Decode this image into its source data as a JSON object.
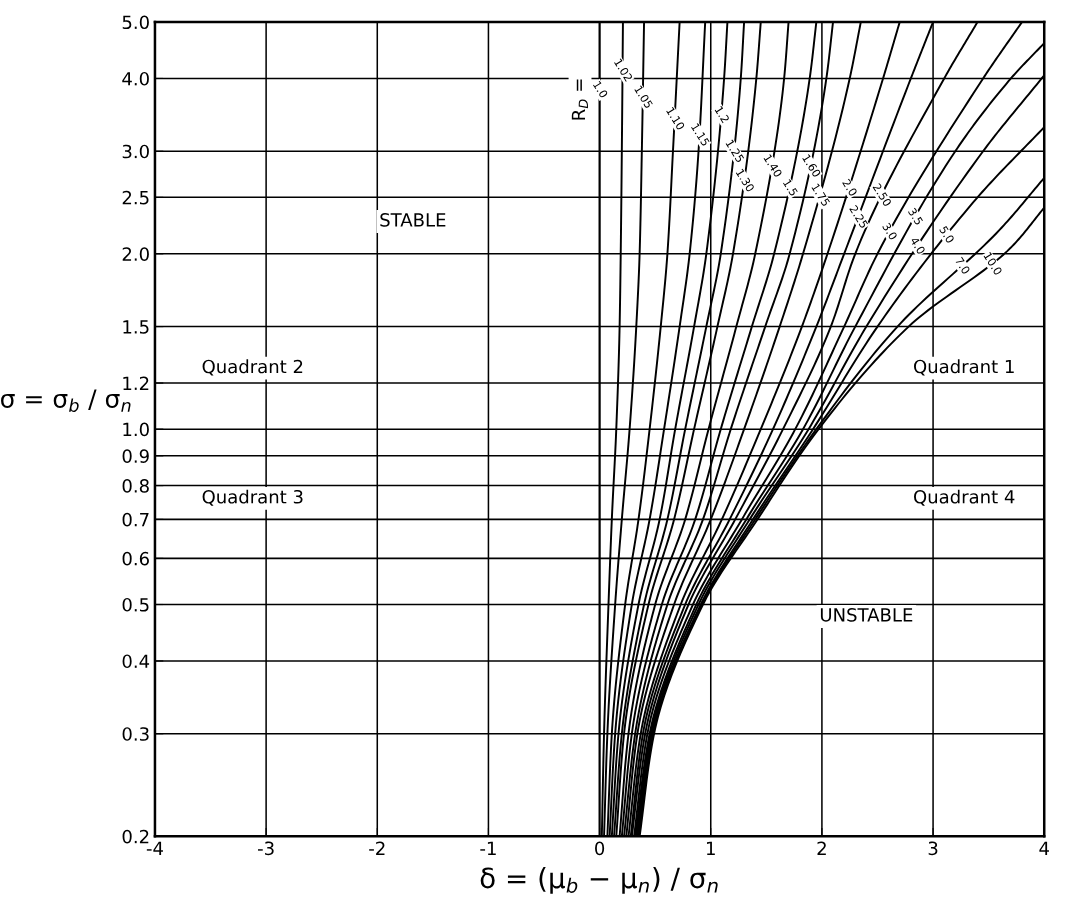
{
  "chart_data": {
    "type": "line",
    "xlabel": "δ = (μ$_{b}$ − μ$_{n}$) / σ$_{n}$",
    "ylabel": "σ = σ$_{b}$ / σ$_{n}$",
    "log": "y",
    "grid": true,
    "line_style": "solid",
    "xlim": [
      -4,
      4
    ],
    "xticks": [
      -4,
      -3,
      -2,
      -1,
      0,
      1,
      2,
      3,
      4
    ],
    "ylim": [
      0.2,
      5
    ],
    "yticks": [
      {
        "value": 0.2,
        "label": "0.2"
      },
      {
        "value": 0.3,
        "label": "0.3"
      },
      {
        "value": 0.4,
        "label": "0.4"
      },
      {
        "value": 0.5,
        "label": "0.5"
      },
      {
        "value": 0.6,
        "label": "0.6"
      },
      {
        "value": 0.7,
        "label": "0.7"
      },
      {
        "value": 0.8,
        "label": "0.8"
      },
      {
        "value": 0.9,
        "label": "0.9"
      },
      {
        "value": 1.0,
        "label": "1.0"
      },
      {
        "value": 1.2,
        "label": "1.2"
      },
      {
        "value": 1.5,
        "label": "1.5"
      },
      {
        "value": 2.0,
        "label": "2.0"
      },
      {
        "value": 2.5,
        "label": "2.5"
      },
      {
        "value": 3.0,
        "label": "3.0"
      },
      {
        "value": 4.0,
        "label": "4.0"
      },
      {
        "value": 5.0,
        "label": "5.0"
      }
    ],
    "annotations": [
      "R$_{D}$ =",
      "STABLE",
      "Quadrant 2",
      "Quadrant 3",
      "Quadrant 1",
      "Quadrant 4",
      "UNSTABLE"
    ],
    "series": [
      {
        "name": "1.0",
        "color": "#000000",
        "x": [
          0,
          0
        ],
        "values": [
          0.2,
          5
        ]
      },
      {
        "name": "1.02",
        "color": "#000000",
        "x": [
          0.02,
          0.04,
          0.08,
          0.11,
          0.15,
          0.18,
          0.19,
          0.2,
          0.21
        ],
        "values": [
          0.2,
          0.3,
          0.5,
          0.7,
          1.0,
          1.5,
          2.0,
          3.0,
          5.0
        ]
      },
      {
        "name": "1.05",
        "color": "#000000",
        "x": [
          0.04,
          0.07,
          0.14,
          0.2,
          0.27,
          0.33,
          0.36,
          0.38,
          0.4
        ],
        "values": [
          0.2,
          0.3,
          0.5,
          0.7,
          1.0,
          1.5,
          2.0,
          3.0,
          5.0
        ]
      },
      {
        "name": "1.10",
        "color": "#000000",
        "x": [
          0.07,
          0.11,
          0.23,
          0.35,
          0.45,
          0.55,
          0.61,
          0.66,
          0.72
        ],
        "values": [
          0.2,
          0.3,
          0.5,
          0.7,
          1.0,
          1.5,
          2.0,
          3.0,
          5.0
        ]
      },
      {
        "name": "1.15",
        "color": "#000000",
        "x": [
          0.09,
          0.14,
          0.29,
          0.45,
          0.58,
          0.72,
          0.81,
          0.89,
          0.95
        ],
        "values": [
          0.2,
          0.3,
          0.5,
          0.7,
          1.0,
          1.5,
          2.0,
          3.0,
          5.0
        ]
      },
      {
        "name": "1.2",
        "color": "#000000",
        "x": [
          0.11,
          0.17,
          0.35,
          0.54,
          0.68,
          0.85,
          0.96,
          1.12,
          1.15
        ],
        "values": [
          0.2,
          0.3,
          0.5,
          0.7,
          1.0,
          1.5,
          2.0,
          4.0,
          5.0
        ]
      },
      {
        "name": "1.25",
        "color": "#000000",
        "x": [
          0.13,
          0.2,
          0.4,
          0.61,
          0.77,
          0.96,
          1.09,
          1.27,
          1.3
        ],
        "values": [
          0.2,
          0.3,
          0.5,
          0.7,
          1.0,
          1.5,
          2.0,
          4.0,
          5.0
        ]
      },
      {
        "name": "1.30",
        "color": "#000000",
        "x": [
          0.15,
          0.22,
          0.44,
          0.67,
          0.85,
          1.06,
          1.2,
          1.41,
          1.45
        ],
        "values": [
          0.2,
          0.3,
          0.5,
          0.7,
          1.0,
          1.5,
          2.0,
          4.0,
          5.0
        ]
      },
      {
        "name": "1.40",
        "color": "#000000",
        "x": [
          0.18,
          0.26,
          0.5,
          0.77,
          0.98,
          1.23,
          1.4,
          1.66,
          1.7
        ],
        "values": [
          0.2,
          0.3,
          0.5,
          0.7,
          1.0,
          1.5,
          2.0,
          4.0,
          5.0
        ]
      },
      {
        "name": "1.5",
        "color": "#000000",
        "x": [
          0.2,
          0.29,
          0.56,
          0.86,
          1.09,
          1.37,
          1.57,
          1.89,
          1.95
        ],
        "values": [
          0.2,
          0.3,
          0.5,
          0.7,
          1.0,
          1.5,
          2.0,
          4.0,
          5.0
        ]
      },
      {
        "name": "1.60",
        "color": "#000000",
        "x": [
          0.22,
          0.32,
          0.61,
          0.93,
          1.18,
          1.49,
          1.71,
          2.04,
          2.1
        ],
        "values": [
          0.2,
          0.3,
          0.5,
          0.7,
          1.0,
          1.5,
          2.0,
          4.0,
          5.0
        ]
      },
      {
        "name": "1.75",
        "color": "#000000",
        "x": [
          0.24,
          0.34,
          0.67,
          1.0,
          1.3,
          1.62,
          1.83,
          2.25,
          2.35
        ],
        "values": [
          0.2,
          0.3,
          0.5,
          0.7,
          1.0,
          1.5,
          2.0,
          4.0,
          5.0
        ]
      },
      {
        "name": "2.0",
        "color": "#000000",
        "x": [
          0.26,
          0.37,
          0.73,
          1.1,
          1.45,
          1.82,
          2.05,
          2.55,
          2.7
        ],
        "values": [
          0.2,
          0.3,
          0.5,
          0.7,
          1.0,
          1.5,
          2.0,
          4.0,
          5.0
        ]
      },
      {
        "name": "2.25",
        "color": "#000000",
        "x": [
          0.28,
          0.39,
          0.77,
          1.17,
          1.56,
          1.95,
          2.2,
          2.8,
          3.0
        ],
        "values": [
          0.2,
          0.3,
          0.5,
          0.7,
          1.0,
          1.5,
          2.0,
          4.0,
          5.0
        ]
      },
      {
        "name": "2.50",
        "color": "#000000",
        "x": [
          0.29,
          0.41,
          0.8,
          1.22,
          1.65,
          2.08,
          2.3,
          3.1,
          3.4
        ],
        "values": [
          0.2,
          0.3,
          0.5,
          0.7,
          1.0,
          1.5,
          2.0,
          4.0,
          5.0
        ]
      },
      {
        "name": "3.0",
        "color": "#000000",
        "x": [
          0.31,
          0.43,
          0.84,
          1.28,
          1.76,
          2.2,
          2.5,
          3.45,
          3.8
        ],
        "values": [
          0.2,
          0.3,
          0.5,
          0.7,
          1.0,
          1.5,
          2.0,
          4.0,
          5.0
        ]
      },
      {
        "name": "3.5",
        "color": "#000000",
        "x": [
          0.32,
          0.45,
          0.87,
          1.32,
          1.83,
          2.3,
          3.2,
          3.7,
          4.0
        ],
        "values": [
          0.2,
          0.3,
          0.5,
          0.7,
          1.0,
          1.5,
          3.0,
          4.0,
          4.6
        ]
      },
      {
        "name": "4.0",
        "color": "#000000",
        "x": [
          0.33,
          0.46,
          0.89,
          1.35,
          1.88,
          2.4,
          3.45,
          4.0
        ],
        "values": [
          0.2,
          0.3,
          0.5,
          0.7,
          1.0,
          1.5,
          3.0,
          4.05
        ]
      },
      {
        "name": "5.0",
        "color": "#000000",
        "x": [
          0.34,
          0.47,
          0.91,
          1.38,
          1.92,
          2.5,
          3.4,
          4.0
        ],
        "values": [
          0.2,
          0.3,
          0.5,
          0.7,
          1.0,
          1.5,
          2.5,
          3.3
        ]
      },
      {
        "name": "7.0",
        "color": "#000000",
        "x": [
          0.35,
          0.48,
          0.92,
          1.4,
          1.95,
          2.68,
          3.6,
          4.0
        ],
        "values": [
          0.2,
          0.3,
          0.5,
          0.7,
          1.0,
          1.5,
          2.2,
          2.7
        ]
      },
      {
        "name": "10.0",
        "color": "#000000",
        "x": [
          0.36,
          0.49,
          0.93,
          1.42,
          1.97,
          2.78,
          3.7,
          4.0
        ],
        "values": [
          0.2,
          0.3,
          0.5,
          0.7,
          1.0,
          1.5,
          2.05,
          2.4
        ]
      }
    ]
  }
}
